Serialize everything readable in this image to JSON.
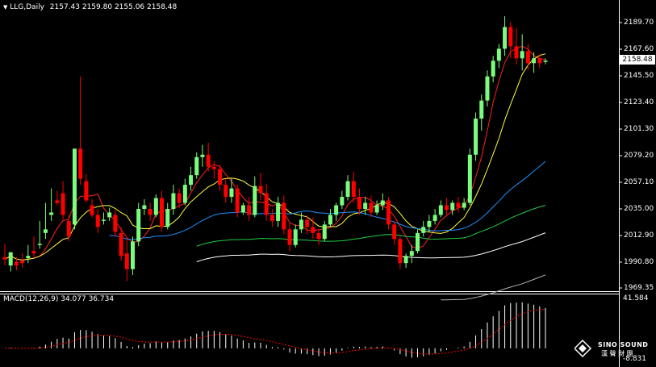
{
  "window": {
    "symbol_label": "LLG,Daily",
    "ohlc": "2157.43 2159.80 2155.06 2158.48"
  },
  "price_axis": {
    "ticks": [
      "2189.70",
      "2167.60",
      "2145.50",
      "2123.40",
      "2101.30",
      "2079.20",
      "2057.10",
      "2035.00",
      "2012.90",
      "1990.80",
      "1969.35"
    ],
    "current_price": "2158.48"
  },
  "macd": {
    "label": "MACD(12,26,9) 34.077 36.734",
    "axis_top": "41.584",
    "axis_bottom": "-8.831"
  },
  "logo": {
    "name": "SINO SOUND",
    "sub": "漢 聲 財 團"
  },
  "colors": {
    "bull": "#7CFC7C",
    "bear": "#FF0000",
    "ma_red": "#FF2020",
    "ma_yellow": "#FFFF40",
    "ma_blue": "#1E90FF",
    "ma_green": "#22CC44",
    "ma_white": "#FFFFFF",
    "ma_gray": "#B0B0B0",
    "signal": "#FF0000"
  },
  "chart_data": {
    "type": "candlestick",
    "ylim": [
      1969.35,
      2199.0
    ],
    "candles": [
      [
        1995,
        2006,
        1993,
        1988
      ],
      [
        1988,
        1997,
        1999,
        1983
      ],
      [
        1991,
        1995,
        1988,
        1984
      ],
      [
        1992,
        1998,
        1990,
        1986
      ],
      [
        1994,
        2005,
        1996,
        1990
      ],
      [
        2000,
        2012,
        1998,
        1995
      ],
      [
        2005,
        2025,
        2006,
        2002
      ],
      [
        2015,
        2040,
        2018,
        2010
      ],
      [
        2030,
        2052,
        2032,
        2025
      ],
      [
        2042,
        2050,
        2040,
        2038
      ],
      [
        2048,
        2058,
        2030,
        2026
      ],
      [
        2025,
        2030,
        2012,
        2008
      ],
      [
        2022,
        2060,
        2085,
        2018
      ],
      [
        2085,
        2145,
        2060,
        2055
      ],
      [
        2058,
        2064,
        2042,
        2040
      ],
      [
        2038,
        2043,
        2030,
        2028
      ],
      [
        2030,
        2035,
        2020,
        2015
      ],
      [
        2025,
        2032,
        2026,
        2022
      ],
      [
        2028,
        2036,
        2032,
        2025
      ],
      [
        2030,
        2034,
        2016,
        2012
      ],
      [
        2015,
        2020,
        1996,
        1992
      ],
      [
        1998,
        2010,
        1985,
        1975
      ],
      [
        1985,
        2012,
        2008,
        1980
      ],
      [
        2008,
        2040,
        2035,
        2004
      ],
      [
        2035,
        2043,
        2038,
        2030
      ],
      [
        2035,
        2040,
        2030,
        2025
      ],
      [
        2030,
        2047,
        2044,
        2028
      ],
      [
        2044,
        2050,
        2020,
        2016
      ],
      [
        2020,
        2040,
        2035,
        2018
      ],
      [
        2035,
        2055,
        2048,
        2030
      ],
      [
        2048,
        2052,
        2040,
        2036
      ],
      [
        2040,
        2060,
        2055,
        2038
      ],
      [
        2055,
        2070,
        2063,
        2050
      ],
      [
        2063,
        2082,
        2078,
        2060
      ],
      [
        2078,
        2088,
        2080,
        2070
      ],
      [
        2080,
        2090,
        2070,
        2066
      ],
      [
        2070,
        2075,
        2068,
        2060
      ],
      [
        2068,
        2072,
        2055,
        2050
      ],
      [
        2055,
        2060,
        2045,
        2040
      ],
      [
        2045,
        2060,
        2052,
        2040
      ],
      [
        2052,
        2055,
        2032,
        2028
      ],
      [
        2032,
        2040,
        2038,
        2030
      ],
      [
        2038,
        2045,
        2030,
        2025
      ],
      [
        2030,
        2062,
        2054,
        2028
      ],
      [
        2054,
        2065,
        2048,
        2042
      ],
      [
        2048,
        2056,
        2030,
        2025
      ],
      [
        2030,
        2035,
        2025,
        2020
      ],
      [
        2025,
        2045,
        2040,
        2020
      ],
      [
        2040,
        2046,
        2018,
        2014
      ],
      [
        2018,
        2023,
        2005,
        2000
      ],
      [
        2005,
        2022,
        2018,
        2003
      ],
      [
        2018,
        2032,
        2026,
        2015
      ],
      [
        2026,
        2030,
        2020,
        2014
      ],
      [
        2020,
        2028,
        2015,
        2010
      ],
      [
        2015,
        2018,
        2010,
        2005
      ],
      [
        2010,
        2025,
        2022,
        2008
      ],
      [
        2022,
        2035,
        2030,
        2020
      ],
      [
        2030,
        2040,
        2038,
        2025
      ],
      [
        2038,
        2050,
        2045,
        2035
      ],
      [
        2045,
        2063,
        2058,
        2042
      ],
      [
        2058,
        2066,
        2045,
        2040
      ],
      [
        2045,
        2052,
        2035,
        2030
      ],
      [
        2035,
        2045,
        2040,
        2030
      ],
      [
        2040,
        2046,
        2032,
        2028
      ],
      [
        2032,
        2042,
        2038,
        2030
      ],
      [
        2038,
        2048,
        2042,
        2034
      ],
      [
        2042,
        2045,
        2022,
        2018
      ],
      [
        2022,
        2025,
        2010,
        2005
      ],
      [
        2010,
        2012,
        1990,
        1985
      ],
      [
        1990,
        1998,
        1996,
        1986
      ],
      [
        1996,
        2005,
        2000,
        1990
      ],
      [
        2000,
        2018,
        2015,
        1998
      ],
      [
        2015,
        2025,
        2020,
        2012
      ],
      [
        2020,
        2030,
        2025,
        2016
      ],
      [
        2025,
        2035,
        2030,
        2022
      ],
      [
        2030,
        2042,
        2038,
        2028
      ],
      [
        2038,
        2044,
        2034,
        2030
      ],
      [
        2034,
        2042,
        2040,
        2030
      ],
      [
        2040,
        2045,
        2036,
        2032
      ],
      [
        2036,
        2044,
        2040,
        2034
      ],
      [
        2040,
        2085,
        2080,
        2038
      ],
      [
        2080,
        2115,
        2110,
        2075
      ],
      [
        2110,
        2130,
        2125,
        2100
      ],
      [
        2125,
        2150,
        2145,
        2120
      ],
      [
        2145,
        2162,
        2158,
        2140
      ],
      [
        2158,
        2172,
        2168,
        2152
      ],
      [
        2168,
        2195,
        2186,
        2162
      ],
      [
        2186,
        2190,
        2170,
        2160
      ],
      [
        2170,
        2185,
        2160,
        2155
      ],
      [
        2160,
        2180,
        2166,
        2150
      ],
      [
        2166,
        2172,
        2156,
        2150
      ],
      [
        2156,
        2165,
        2160,
        2148
      ],
      [
        2160,
        2163,
        2156,
        2152
      ],
      [
        2157,
        2160,
        2158,
        2155
      ]
    ]
  }
}
